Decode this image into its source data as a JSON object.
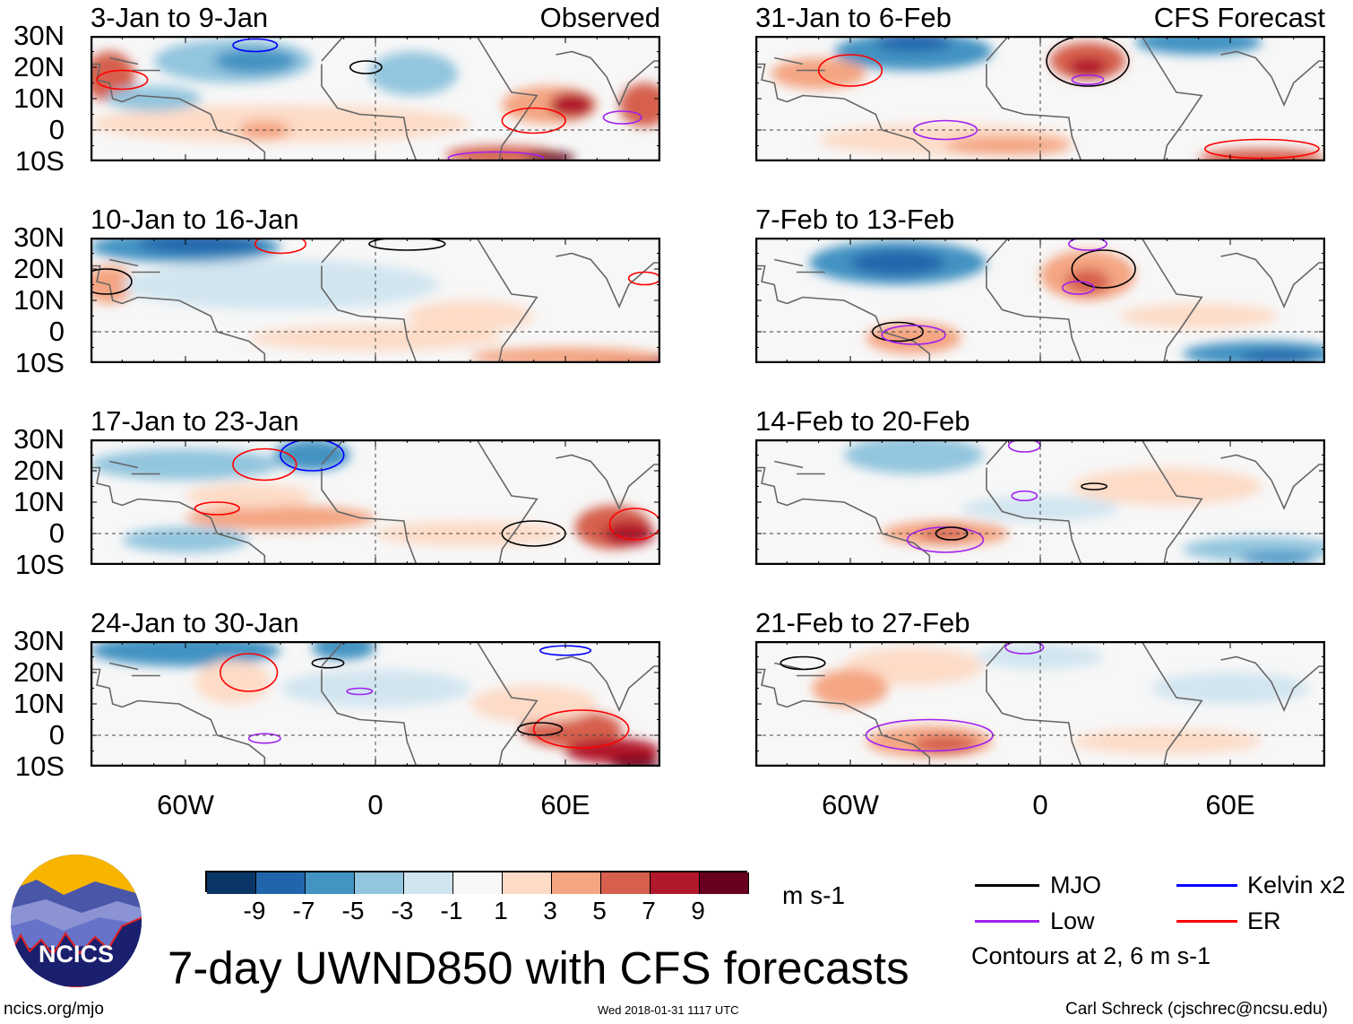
{
  "panels": [
    {
      "title": "3-Jan to 9-Jan",
      "tag": "Observed",
      "column": "left",
      "row": 0
    },
    {
      "title": "10-Jan to 16-Jan",
      "tag": "",
      "column": "left",
      "row": 1
    },
    {
      "title": "17-Jan to 23-Jan",
      "tag": "",
      "column": "left",
      "row": 2
    },
    {
      "title": "24-Jan to 30-Jan",
      "tag": "",
      "column": "left",
      "row": 3
    },
    {
      "title": "31-Jan to 6-Feb",
      "tag": "CFS Forecast",
      "column": "right",
      "row": 0
    },
    {
      "title": "7-Feb to 13-Feb",
      "tag": "",
      "column": "right",
      "row": 1
    },
    {
      "title": "14-Feb to 20-Feb",
      "tag": "",
      "column": "right",
      "row": 2
    },
    {
      "title": "21-Feb to 27-Feb",
      "tag": "",
      "column": "right",
      "row": 3
    }
  ],
  "axes": {
    "lat_labels": [
      "30N",
      "20N",
      "10N",
      "0",
      "10S"
    ],
    "lon_labels": [
      "60W",
      "0",
      "60E"
    ],
    "lon_range": [
      -90,
      90
    ],
    "lat_range": [
      -10,
      30
    ]
  },
  "colorbar": {
    "labels": [
      "-9",
      "-7",
      "-5",
      "-3",
      "-1",
      "1",
      "3",
      "5",
      "7",
      "9"
    ],
    "colors": [
      "#0a3567",
      "#2166ac",
      "#4393c3",
      "#92c5de",
      "#d1e5f0",
      "#f7f7f7",
      "#fddbc7",
      "#f4a582",
      "#d6604d",
      "#b2182b",
      "#67001f"
    ],
    "units": "m s-1"
  },
  "legend": {
    "items": [
      {
        "label": "MJO",
        "color": "#000000"
      },
      {
        "label": "Kelvin x2",
        "color": "#0000ff"
      },
      {
        "label": "Low",
        "color": "#a020f0"
      },
      {
        "label": "ER",
        "color": "#ff0000"
      }
    ],
    "note": "Contours at 2, 6 m s-1"
  },
  "logo": {
    "text": "NCICS"
  },
  "title": "7-day UWND850 with CFS forecasts",
  "footer": {
    "left": "ncics.org/mjo",
    "center": "Wed 2018-01-31 1117 UTC",
    "right": "Carl Schreck (cjschrec@ncsu.edu)"
  }
}
